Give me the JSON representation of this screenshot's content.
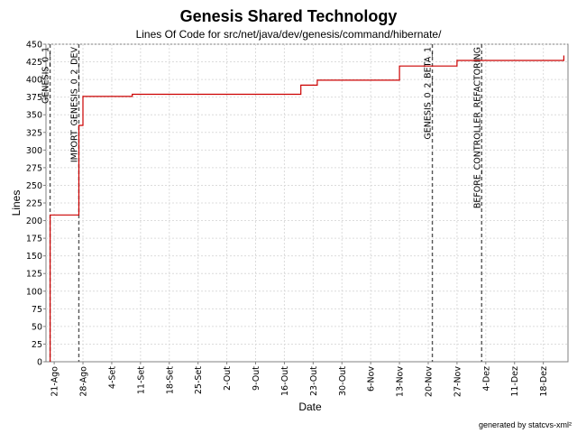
{
  "chart_data": {
    "type": "line",
    "title": "Genesis Shared Technology",
    "subtitle": "Lines Of Code for src/net/java/dev/genesis/command/hibernate/",
    "xlabel": "Date",
    "ylabel": "Lines",
    "footer": "generated by statcvs-xml²",
    "ylim": [
      0,
      450
    ],
    "yticks": [
      0,
      25,
      50,
      75,
      100,
      125,
      150,
      175,
      200,
      225,
      250,
      275,
      300,
      325,
      350,
      375,
      400,
      425,
      450
    ],
    "xlim": [
      "2004-08-19",
      "2004-12-24"
    ],
    "xticks": [
      {
        "date": "2004-08-21",
        "label": "21-Ago"
      },
      {
        "date": "2004-08-28",
        "label": "28-Ago"
      },
      {
        "date": "2004-09-04",
        "label": "4-Set"
      },
      {
        "date": "2004-09-11",
        "label": "11-Set"
      },
      {
        "date": "2004-09-18",
        "label": "18-Set"
      },
      {
        "date": "2004-09-25",
        "label": "25-Set"
      },
      {
        "date": "2004-10-02",
        "label": "2-Out"
      },
      {
        "date": "2004-10-09",
        "label": "9-Out"
      },
      {
        "date": "2004-10-16",
        "label": "16-Out"
      },
      {
        "date": "2004-10-23",
        "label": "23-Out"
      },
      {
        "date": "2004-10-30",
        "label": "30-Out"
      },
      {
        "date": "2004-11-06",
        "label": "6-Nov"
      },
      {
        "date": "2004-11-13",
        "label": "13-Nov"
      },
      {
        "date": "2004-11-20",
        "label": "20-Nov"
      },
      {
        "date": "2004-11-27",
        "label": "27-Nov"
      },
      {
        "date": "2004-12-04",
        "label": "4-Dez"
      },
      {
        "date": "2004-12-11",
        "label": "11-Dez"
      },
      {
        "date": "2004-12-18",
        "label": "18-Dez"
      }
    ],
    "grid": true,
    "series": [
      {
        "color": "#cc0000",
        "x": [
          "2004-08-20",
          "2004-08-20",
          "2004-08-27",
          "2004-08-27",
          "2004-08-28",
          "2004-09-09",
          "2004-10-20",
          "2004-10-24",
          "2004-11-13",
          "2004-11-27",
          "2004-12-23"
        ],
        "y": [
          0,
          208,
          208,
          335,
          376,
          379,
          392,
          399,
          419,
          427,
          434
        ]
      }
    ],
    "markers": [
      {
        "date": "2004-08-20",
        "label": "GENESIS_0_1"
      },
      {
        "date": "2004-08-27",
        "label": "IMPORT_GENESIS_0_2_DEV"
      },
      {
        "date": "2004-11-21",
        "label": "GENESIS_0_2_BETA_1"
      },
      {
        "date": "2004-12-03",
        "label": "BEFORE_CONTROLLER_REFACTORING"
      }
    ]
  }
}
